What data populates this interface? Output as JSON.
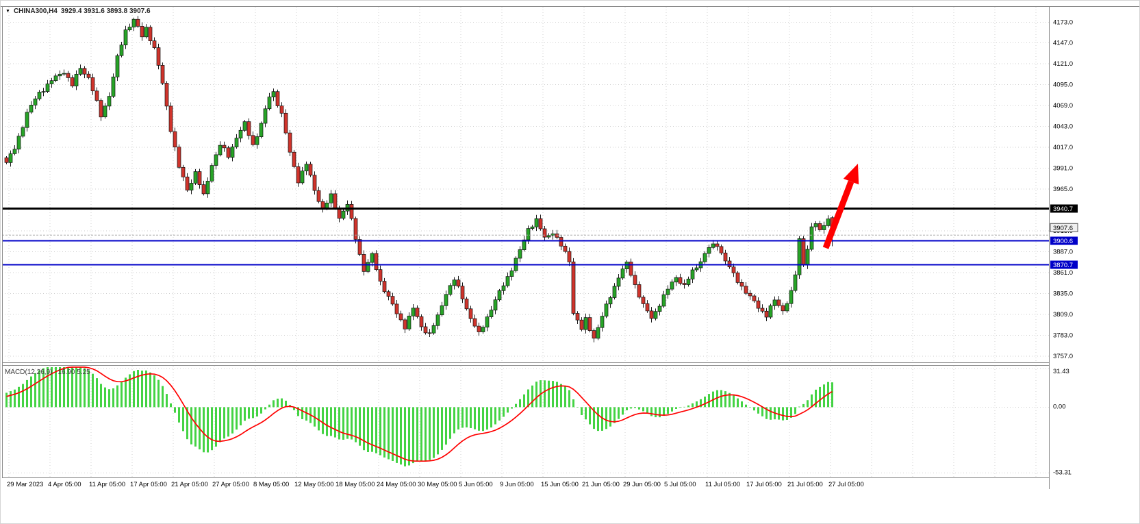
{
  "header": {
    "symbol": "CHINA300,H4",
    "ohlc_text": "3929.4 3931.6 3893.8 3907.6",
    "dropdown_icon": "triangle-down"
  },
  "colors": {
    "up_candle": "#27a427",
    "down_candle": "#d0342c",
    "candle_outline": "#111111",
    "wick": "#1a1a1a",
    "grid": "#cfcfcf",
    "axis_text": "#000000",
    "level_black": "#000000",
    "level_blue": "#0000c8",
    "current_price_line": "#a8a8a8",
    "current_badge_bg": "#efefef",
    "current_badge_border": "#555555",
    "macd_bar": "#44d344",
    "macd_signal": "#ff0000",
    "arrow": "#fe0000",
    "separator": "#8a8a8a"
  },
  "chart_data": {
    "type": "candlestick",
    "title": "CHINA300,H4",
    "timeframe": "H4",
    "last_ohlc": {
      "open": 3929.4,
      "high": 3931.6,
      "low": 3893.8,
      "close": 3907.6
    },
    "current_price": 3907.6,
    "y_axis": {
      "ticks": [
        4173.0,
        4147.0,
        4121.0,
        4095.0,
        4069.0,
        4043.0,
        4017.0,
        3991.0,
        3965.0,
        3913.0,
        3887.0,
        3861.0,
        3835.0,
        3809.0,
        3783.0,
        3757.0
      ],
      "range": [
        3750,
        4192
      ]
    },
    "levels": [
      {
        "value": 3940.7,
        "color": "#000000",
        "width": 3
      },
      {
        "value": 3900.6,
        "color": "#0000c8",
        "width": 2
      },
      {
        "value": 3870.7,
        "color": "#0000c8",
        "width": 2
      }
    ],
    "x_axis": {
      "labels": [
        "29 Mar 2023",
        "4 Apr 05:00",
        "11 Apr 05:00",
        "17 Apr 05:00",
        "21 Apr 05:00",
        "27 Apr 05:00",
        "8 May 05:00",
        "12 May 05:00",
        "18 May 05:00",
        "24 May 05:00",
        "30 May 05:00",
        "5 Jun 05:00",
        "9 Jun 05:00",
        "15 Jun 05:00",
        "21 Jun 05:00",
        "29 Jun 05:00",
        "5 Jul 05:00",
        "11 Jul 05:00",
        "17 Jul 05:00",
        "21 Jul 05:00",
        "27 Jul 05:00"
      ],
      "label_start_bar": 1,
      "label_step_bars": 10
    },
    "bars": {
      "count": 202,
      "wiggle": 3.5,
      "warmup": {
        "bars": 16,
        "start_price": 3948
      },
      "price_path_anchors": [
        [
          0,
          3998
        ],
        [
          2,
          4015
        ],
        [
          5,
          4060
        ],
        [
          8,
          4085
        ],
        [
          11,
          4100
        ],
        [
          14,
          4112
        ],
        [
          16,
          4094
        ],
        [
          18,
          4116
        ],
        [
          20,
          4104
        ],
        [
          23,
          4056
        ],
        [
          25,
          4082
        ],
        [
          27,
          4128
        ],
        [
          29,
          4163
        ],
        [
          31,
          4176
        ],
        [
          33,
          4155
        ],
        [
          34,
          4166
        ],
        [
          36,
          4140
        ],
        [
          38,
          4096
        ],
        [
          40,
          4040
        ],
        [
          42,
          3992
        ],
        [
          44,
          3964
        ],
        [
          46,
          3986
        ],
        [
          48,
          3956
        ],
        [
          50,
          3996
        ],
        [
          52,
          4020
        ],
        [
          54,
          4006
        ],
        [
          56,
          4030
        ],
        [
          58,
          4046
        ],
        [
          60,
          4020
        ],
        [
          62,
          4046
        ],
        [
          64,
          4080
        ],
        [
          65,
          4086
        ],
        [
          67,
          4058
        ],
        [
          69,
          4010
        ],
        [
          71,
          3976
        ],
        [
          73,
          3996
        ],
        [
          75,
          3964
        ],
        [
          77,
          3940
        ],
        [
          79,
          3956
        ],
        [
          81,
          3930
        ],
        [
          83,
          3946
        ],
        [
          85,
          3904
        ],
        [
          87,
          3864
        ],
        [
          89,
          3882
        ],
        [
          91,
          3850
        ],
        [
          93,
          3830
        ],
        [
          95,
          3810
        ],
        [
          97,
          3794
        ],
        [
          99,
          3816
        ],
        [
          101,
          3794
        ],
        [
          103,
          3784
        ],
        [
          105,
          3806
        ],
        [
          107,
          3836
        ],
        [
          109,
          3852
        ],
        [
          111,
          3830
        ],
        [
          113,
          3804
        ],
        [
          115,
          3784
        ],
        [
          117,
          3806
        ],
        [
          119,
          3826
        ],
        [
          121,
          3846
        ],
        [
          123,
          3866
        ],
        [
          125,
          3888
        ],
        [
          127,
          3916
        ],
        [
          129,
          3926
        ],
        [
          131,
          3904
        ],
        [
          133,
          3912
        ],
        [
          135,
          3894
        ],
        [
          137,
          3876
        ],
        [
          138,
          3812
        ],
        [
          140,
          3790
        ],
        [
          141,
          3802
        ],
        [
          143,
          3780
        ],
        [
          145,
          3806
        ],
        [
          147,
          3832
        ],
        [
          149,
          3856
        ],
        [
          151,
          3872
        ],
        [
          153,
          3846
        ],
        [
          155,
          3820
        ],
        [
          157,
          3804
        ],
        [
          159,
          3822
        ],
        [
          161,
          3840
        ],
        [
          163,
          3856
        ],
        [
          165,
          3844
        ],
        [
          167,
          3862
        ],
        [
          169,
          3876
        ],
        [
          171,
          3892
        ],
        [
          173,
          3896
        ],
        [
          175,
          3876
        ],
        [
          177,
          3858
        ],
        [
          179,
          3844
        ],
        [
          181,
          3830
        ],
        [
          183,
          3818
        ],
        [
          185,
          3808
        ],
        [
          187,
          3826
        ],
        [
          189,
          3814
        ],
        [
          191,
          3836
        ],
        [
          192,
          3858
        ],
        [
          193,
          3902
        ],
        [
          194,
          3872
        ],
        [
          195,
          3892
        ],
        [
          196,
          3916
        ],
        [
          197,
          3922
        ],
        [
          198,
          3912
        ],
        [
          199,
          3922
        ],
        [
          200,
          3929
        ],
        [
          201,
          3907.6
        ]
      ]
    },
    "macd": {
      "label": "MACD(12,26,9)",
      "current_values": "16.90 5.25",
      "fast": 12,
      "slow": 26,
      "signal": 9,
      "ticks": [
        31.43,
        0,
        -53.31
      ],
      "range": [
        -57,
        33
      ]
    }
  },
  "annotations": {
    "arrow": {
      "tail": [
        1205,
        361
      ],
      "tip": [
        1252,
        238
      ],
      "shaft_width": 9,
      "head_length": 28,
      "head_half_width": 12
    }
  }
}
